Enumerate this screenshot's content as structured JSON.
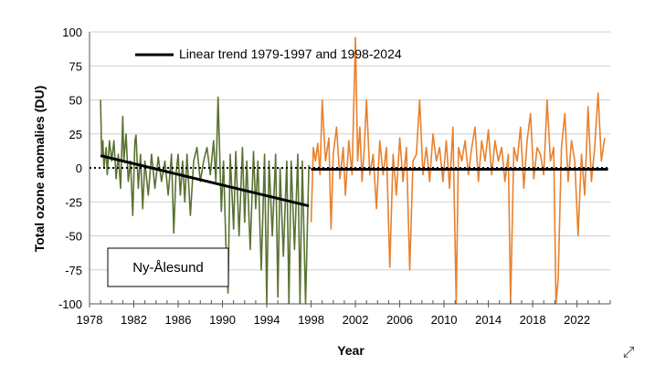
{
  "chart_data": {
    "type": "line",
    "title": "",
    "xlabel": "Year",
    "ylabel": "Total ozone anomalies (DU)",
    "xlim": [
      1978,
      2025
    ],
    "ylim": [
      -100,
      100
    ],
    "x_ticks": [
      "1978",
      "1982",
      "1986",
      "1990",
      "1994",
      "1998",
      "2002",
      "2006",
      "2010",
      "2014",
      "2018",
      "2022"
    ],
    "y_ticks": [
      "100",
      "75",
      "50",
      "25",
      "0",
      "-25",
      "-50",
      "-75",
      "-100"
    ],
    "grid": "horizontal",
    "legend": {
      "label": "Linear trend 1979-1997 and 1998-2024",
      "position": "top-left"
    },
    "annotation": "Ny-Ålesund",
    "series": [
      {
        "color": "#5a7233",
        "x": [
          1979.0,
          1979.1,
          1979.2,
          1979.3,
          1979.5,
          1979.6,
          1979.8,
          1980.0,
          1980.2,
          1980.4,
          1980.6,
          1980.8,
          1981.0,
          1981.1,
          1981.3,
          1981.5,
          1981.7,
          1981.9,
          1982.1,
          1982.2,
          1982.4,
          1982.6,
          1982.8,
          1983.0,
          1983.3,
          1983.6,
          1983.9,
          1984.2,
          1984.5,
          1984.8,
          1985.1,
          1985.4,
          1985.6,
          1985.8,
          1986.0,
          1986.2,
          1986.4,
          1986.6,
          1986.8,
          1987.1,
          1987.4,
          1987.7,
          1988.0,
          1988.3,
          1988.6,
          1988.9,
          1989.0,
          1989.2,
          1989.4,
          1989.6,
          1989.9,
          1990.1,
          1990.3,
          1990.5,
          1990.7,
          1991.0,
          1991.2,
          1991.5,
          1991.8,
          1992.0,
          1992.2,
          1992.5,
          1992.8,
          1993.0,
          1993.2,
          1993.5,
          1993.8,
          1994.0,
          1994.2,
          1994.5,
          1994.8,
          1995.0,
          1995.2,
          1995.5,
          1995.8,
          1996.0,
          1996.2,
          1996.5,
          1996.8,
          1997.0,
          1997.2,
          1997.5,
          1997.8
        ],
        "y": [
          50,
          8,
          20,
          0,
          15,
          -5,
          20,
          5,
          20,
          -8,
          10,
          -15,
          38,
          5,
          25,
          -10,
          5,
          -35,
          20,
          24,
          -15,
          10,
          -30,
          5,
          -20,
          10,
          -15,
          8,
          -10,
          5,
          -20,
          10,
          -48,
          -5,
          10,
          -20,
          5,
          -25,
          10,
          -35,
          5,
          15,
          -10,
          5,
          15,
          -5,
          3,
          20,
          -10,
          52,
          -32,
          5,
          -55,
          -92,
          10,
          -45,
          12,
          -50,
          15,
          -40,
          5,
          -60,
          12,
          -30,
          5,
          -75,
          10,
          -100,
          5,
          -50,
          10,
          -95,
          0,
          -65,
          5,
          -100,
          5,
          -60,
          10,
          -100,
          5,
          -100,
          2
        ]
      },
      {
        "color": "#e8812e",
        "x": [
          1998.0,
          1998.2,
          1998.4,
          1998.6,
          1998.8,
          1999.0,
          1999.3,
          1999.6,
          1999.8,
          2000.0,
          2000.3,
          2000.6,
          2000.9,
          2001.1,
          2001.4,
          2001.7,
          2002.0,
          2002.2,
          2002.4,
          2002.6,
          2002.8,
          2003.0,
          2003.3,
          2003.6,
          2003.9,
          2004.2,
          2004.5,
          2004.8,
          2005.1,
          2005.4,
          2005.7,
          2006.0,
          2006.3,
          2006.6,
          2006.9,
          2007.2,
          2007.5,
          2007.8,
          2008.1,
          2008.4,
          2008.7,
          2009.0,
          2009.3,
          2009.6,
          2009.9,
          2010.2,
          2010.5,
          2010.8,
          2011.1,
          2011.3,
          2011.6,
          2011.9,
          2012.2,
          2012.5,
          2012.8,
          2013.1,
          2013.4,
          2013.7,
          2014.0,
          2014.3,
          2014.6,
          2014.9,
          2015.2,
          2015.5,
          2015.8,
          2016.0,
          2016.3,
          2016.6,
          2016.9,
          2017.2,
          2017.5,
          2017.8,
          2018.1,
          2018.4,
          2018.7,
          2019.0,
          2019.3,
          2019.6,
          2019.9,
          2020.1,
          2020.3,
          2020.6,
          2020.9,
          2021.2,
          2021.5,
          2021.8,
          2022.1,
          2022.4,
          2022.7,
          2023.0,
          2023.3,
          2023.6,
          2023.9,
          2024.2,
          2024.5
        ],
        "y": [
          -40,
          15,
          5,
          18,
          -5,
          50,
          5,
          22,
          -45,
          10,
          30,
          -8,
          15,
          -20,
          20,
          -5,
          96,
          5,
          30,
          -10,
          15,
          50,
          -5,
          10,
          -30,
          20,
          -5,
          15,
          -73,
          10,
          -20,
          22,
          -10,
          15,
          -75,
          5,
          10,
          50,
          -5,
          15,
          -10,
          25,
          5,
          15,
          -10,
          20,
          -15,
          30,
          -100,
          15,
          5,
          20,
          -5,
          15,
          30,
          -10,
          20,
          5,
          28,
          -5,
          20,
          5,
          15,
          -10,
          10,
          -100,
          15,
          5,
          30,
          -15,
          20,
          40,
          -8,
          15,
          10,
          -5,
          50,
          5,
          15,
          -100,
          -82,
          15,
          40,
          -10,
          20,
          5,
          -50,
          10,
          -20,
          45,
          -10,
          15,
          55,
          5,
          22
        ]
      }
    ],
    "trend_lines": [
      {
        "color": "#000000",
        "x": [
          1979,
          1997.8
        ],
        "y": [
          9,
          -28
        ]
      },
      {
        "color": "#000000",
        "x": [
          1998,
          2024.8
        ],
        "y": [
          -1,
          -1
        ]
      }
    ],
    "zero_line": {
      "style": "dotted",
      "y": 0
    }
  },
  "ui": {
    "expand_icon": "expand-diagonal-icon"
  }
}
